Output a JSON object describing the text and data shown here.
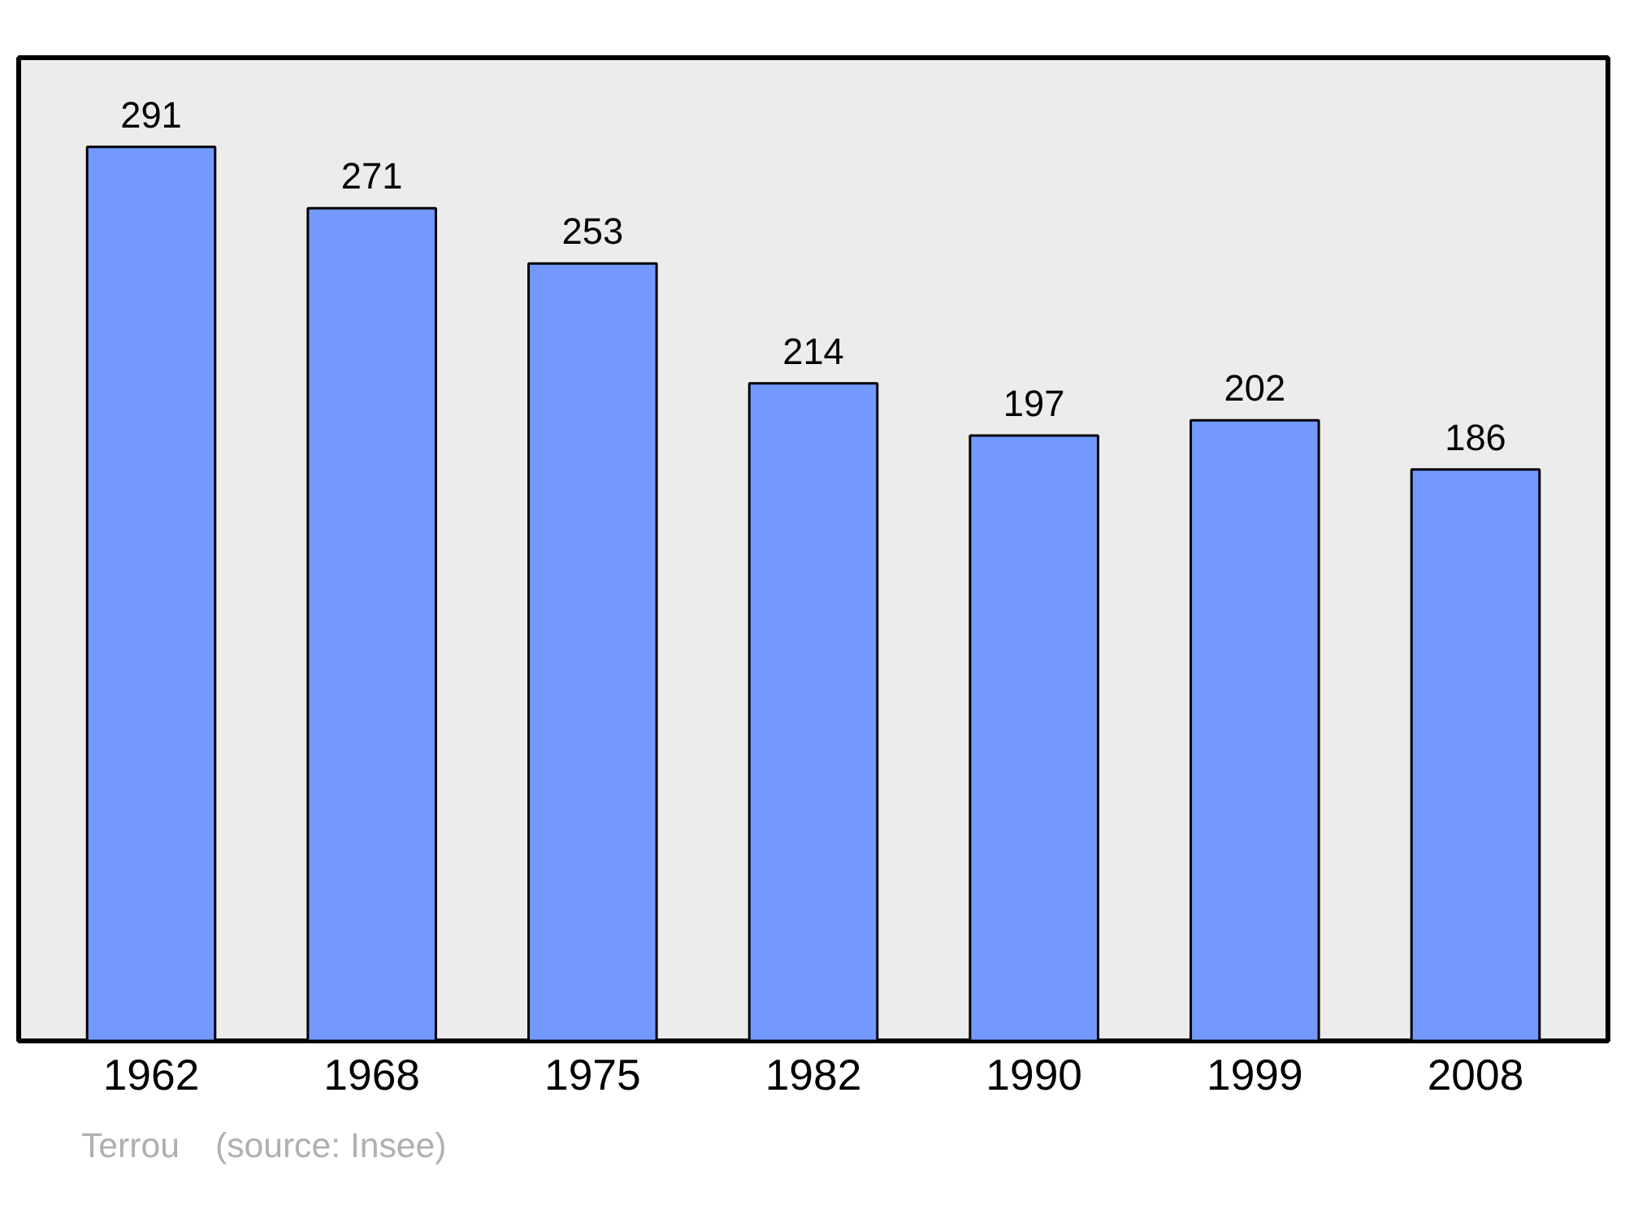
{
  "chart_data": {
    "type": "bar",
    "categories": [
      "1962",
      "1968",
      "1975",
      "1982",
      "1990",
      "1999",
      "2008"
    ],
    "values": [
      291,
      271,
      253,
      214,
      197,
      202,
      186
    ],
    "color": "#7399ff",
    "data_labels": true,
    "ylim": [
      0,
      320
    ],
    "tick_labels": "x",
    "grid": false,
    "annotations": [
      "Terrou",
      "(source: Insee)"
    ]
  }
}
